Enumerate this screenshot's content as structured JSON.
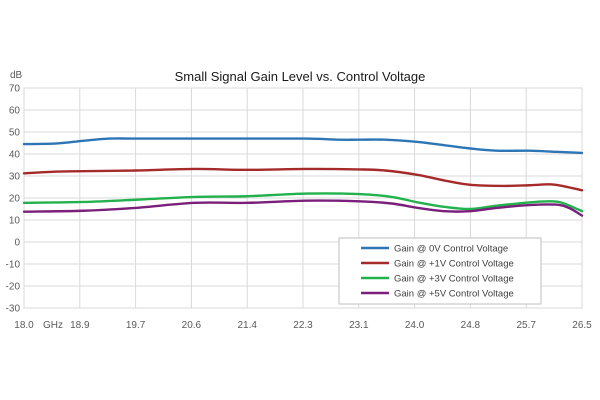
{
  "chart_data": {
    "type": "line",
    "title": "Small Signal Gain Level vs. Control Voltage",
    "ylabel": "dB",
    "xlabel": "GHz",
    "xlim": [
      18.0,
      26.5
    ],
    "ylim": [
      -30,
      70
    ],
    "y_ticks": [
      -30,
      -20,
      -10,
      0,
      10,
      20,
      30,
      40,
      50,
      60,
      70
    ],
    "x_tick_values": [
      18.0,
      18.85,
      19.7,
      20.55,
      21.4,
      22.25,
      23.1,
      23.95,
      24.8,
      25.65,
      26.5
    ],
    "x_tick_labels": [
      "18.0",
      "18.9",
      "19.7",
      "20.6",
      "21.4",
      "22.3",
      "23.1",
      "24.0",
      "24.8",
      "25.7",
      "26.5"
    ],
    "grid": true,
    "legend_position": "bottom-right",
    "series": [
      {
        "name": "Gain @ 0V Control Voltage",
        "color": "#2e75b6",
        "x": [
          18.0,
          18.5,
          18.9,
          19.3,
          19.7,
          20.6,
          21.4,
          22.3,
          22.8,
          23.1,
          23.5,
          24.0,
          24.4,
          24.8,
          25.2,
          25.7,
          26.1,
          26.5
        ],
        "y": [
          44.5,
          44.8,
          46.0,
          47.0,
          47.0,
          47.0,
          47.0,
          47.0,
          46.5,
          46.5,
          46.5,
          45.5,
          44.0,
          42.5,
          41.5,
          41.5,
          41.0,
          40.5
        ]
      },
      {
        "name": "Gain @ +1V Control Voltage",
        "color": "#a52a2a",
        "x": [
          18.0,
          18.5,
          18.9,
          19.7,
          20.6,
          21.4,
          22.3,
          23.1,
          23.5,
          24.0,
          24.4,
          24.8,
          25.3,
          25.7,
          26.0,
          26.2,
          26.5
        ],
        "y": [
          31.2,
          32.0,
          32.2,
          32.5,
          33.2,
          32.8,
          33.2,
          33.0,
          32.5,
          30.5,
          28.0,
          26.0,
          25.5,
          25.8,
          26.2,
          25.5,
          23.5
        ]
      },
      {
        "name": "Gain @ +3V Control Voltage",
        "color": "#22b14c",
        "x": [
          18.0,
          18.9,
          19.7,
          20.6,
          21.4,
          22.3,
          23.1,
          23.6,
          24.0,
          24.4,
          24.8,
          25.2,
          25.7,
          26.0,
          26.2,
          26.5
        ],
        "y": [
          17.8,
          18.2,
          19.2,
          20.5,
          20.8,
          22.0,
          21.8,
          20.5,
          18.0,
          16.0,
          15.0,
          16.5,
          18.0,
          18.5,
          17.8,
          14.0
        ]
      },
      {
        "name": "Gain @ +5V Control Voltage",
        "color": "#7a1f7a",
        "x": [
          18.0,
          18.9,
          19.7,
          20.6,
          21.4,
          22.3,
          23.1,
          23.6,
          24.0,
          24.4,
          24.8,
          25.2,
          25.7,
          26.1,
          26.3,
          26.5
        ],
        "y": [
          13.8,
          14.2,
          15.5,
          17.8,
          17.8,
          18.8,
          18.5,
          17.5,
          15.5,
          14.0,
          14.0,
          15.5,
          16.8,
          17.0,
          15.5,
          12.0
        ]
      }
    ]
  }
}
